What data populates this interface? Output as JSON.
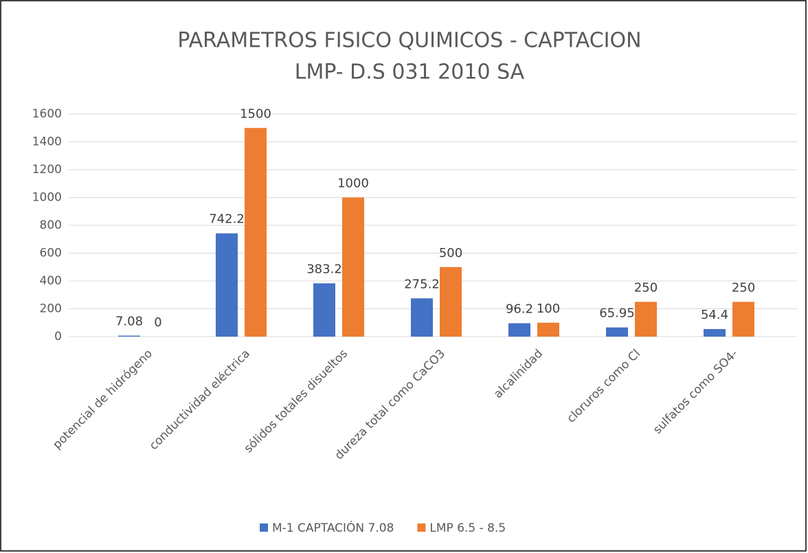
{
  "chart_data": {
    "type": "bar",
    "title": "PARAMETROS FISICO QUIMICOS - CAPTACION",
    "subtitle": "LMP- D.S 031 2010 SA",
    "categories": [
      "potencial de hidrógeno",
      "conductividad eléctrica",
      "sólidos totales disueltos",
      "dureza total como CaCO3",
      "alcalinidad",
      "cloruros como Cl",
      "sulfatos como SO4-"
    ],
    "series": [
      {
        "name": "M-1 CAPTACIÓN 7.08",
        "color": "#4472c4",
        "values": [
          7.08,
          742.2,
          383.2,
          275.2,
          96.2,
          65.95,
          54.4
        ]
      },
      {
        "name": "LMP 6.5 - 8.5",
        "color": "#ed7d31",
        "values": [
          0,
          1500,
          1000,
          500,
          100,
          250,
          250
        ]
      }
    ],
    "ylim": [
      0,
      1600
    ],
    "yticks": [
      0,
      200,
      400,
      600,
      800,
      1000,
      1200,
      1400,
      1600
    ],
    "grid": true,
    "legend": "bottom"
  }
}
